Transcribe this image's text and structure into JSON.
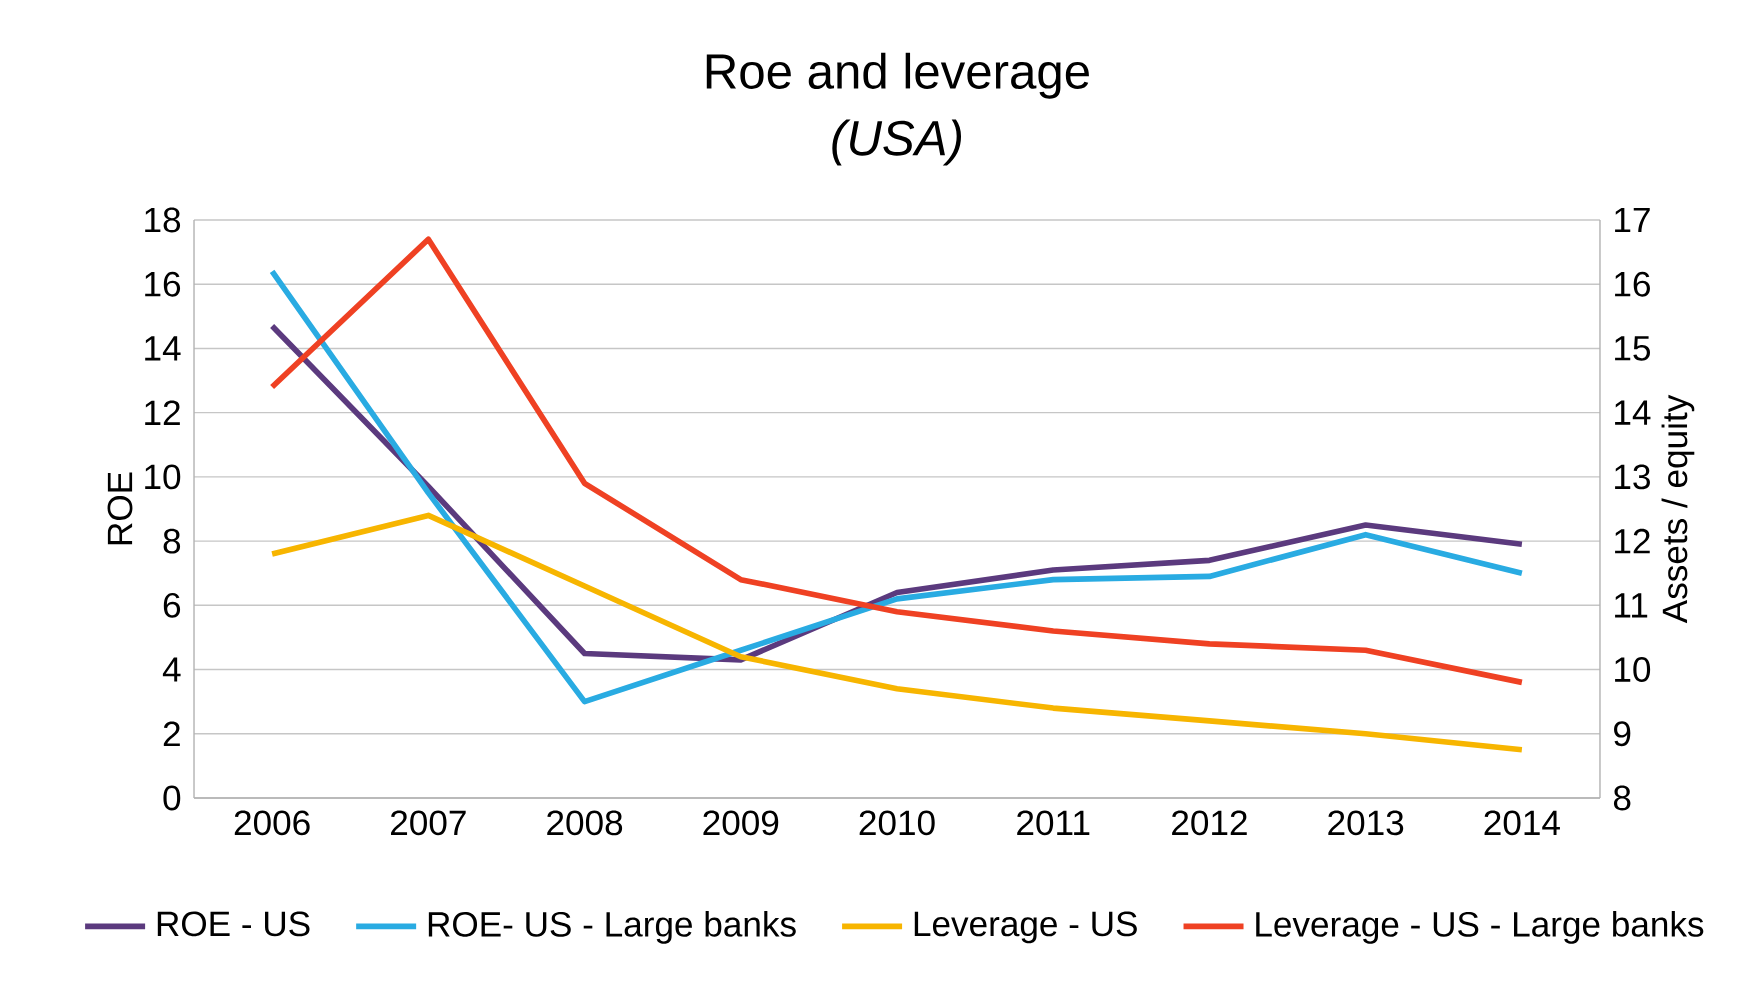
{
  "chart_data": {
    "type": "line",
    "title": "Roe and leverage",
    "subtitle": "(USA)",
    "ylabel": "ROE",
    "y2label": "Assets / equity",
    "categories": [
      "2006",
      "2007",
      "2008",
      "2009",
      "2010",
      "2011",
      "2012",
      "2013",
      "2014"
    ],
    "series": [
      {
        "name": "ROE - US",
        "color": "#5b3a7e",
        "values": [
          14.7,
          9.7,
          4.5,
          4.3,
          6.4,
          7.1,
          7.4,
          8.5,
          7.9
        ]
      },
      {
        "name": "ROE- US - Large banks",
        "color": "#29abe2",
        "values": [
          16.4,
          9.5,
          3.0,
          4.6,
          6.2,
          6.8,
          6.9,
          8.2,
          7.0
        ]
      },
      {
        "name": "Leverage - US",
        "color": "#f7b500",
        "axis": "y2",
        "values": [
          11.8,
          12.4,
          11.3,
          10.2,
          9.7,
          9.4,
          9.2,
          9.0,
          8.75
        ]
      },
      {
        "name": "Leverage - US - Large banks",
        "color": "#ef4123",
        "axis": "y2",
        "values": [
          14.4,
          16.7,
          12.9,
          11.4,
          10.9,
          10.6,
          10.4,
          10.3,
          9.8
        ]
      }
    ],
    "ylim": [
      0,
      18
    ],
    "yticks": [
      0,
      2,
      4,
      6,
      8,
      10,
      12,
      14,
      16,
      18
    ],
    "y2lim": [
      8,
      17
    ],
    "y2ticks": [
      8,
      9,
      10,
      11,
      12,
      13,
      14,
      15,
      16,
      17
    ],
    "grid": "y",
    "legend": "bottom",
    "marker": "none",
    "line_style": "solid"
  }
}
